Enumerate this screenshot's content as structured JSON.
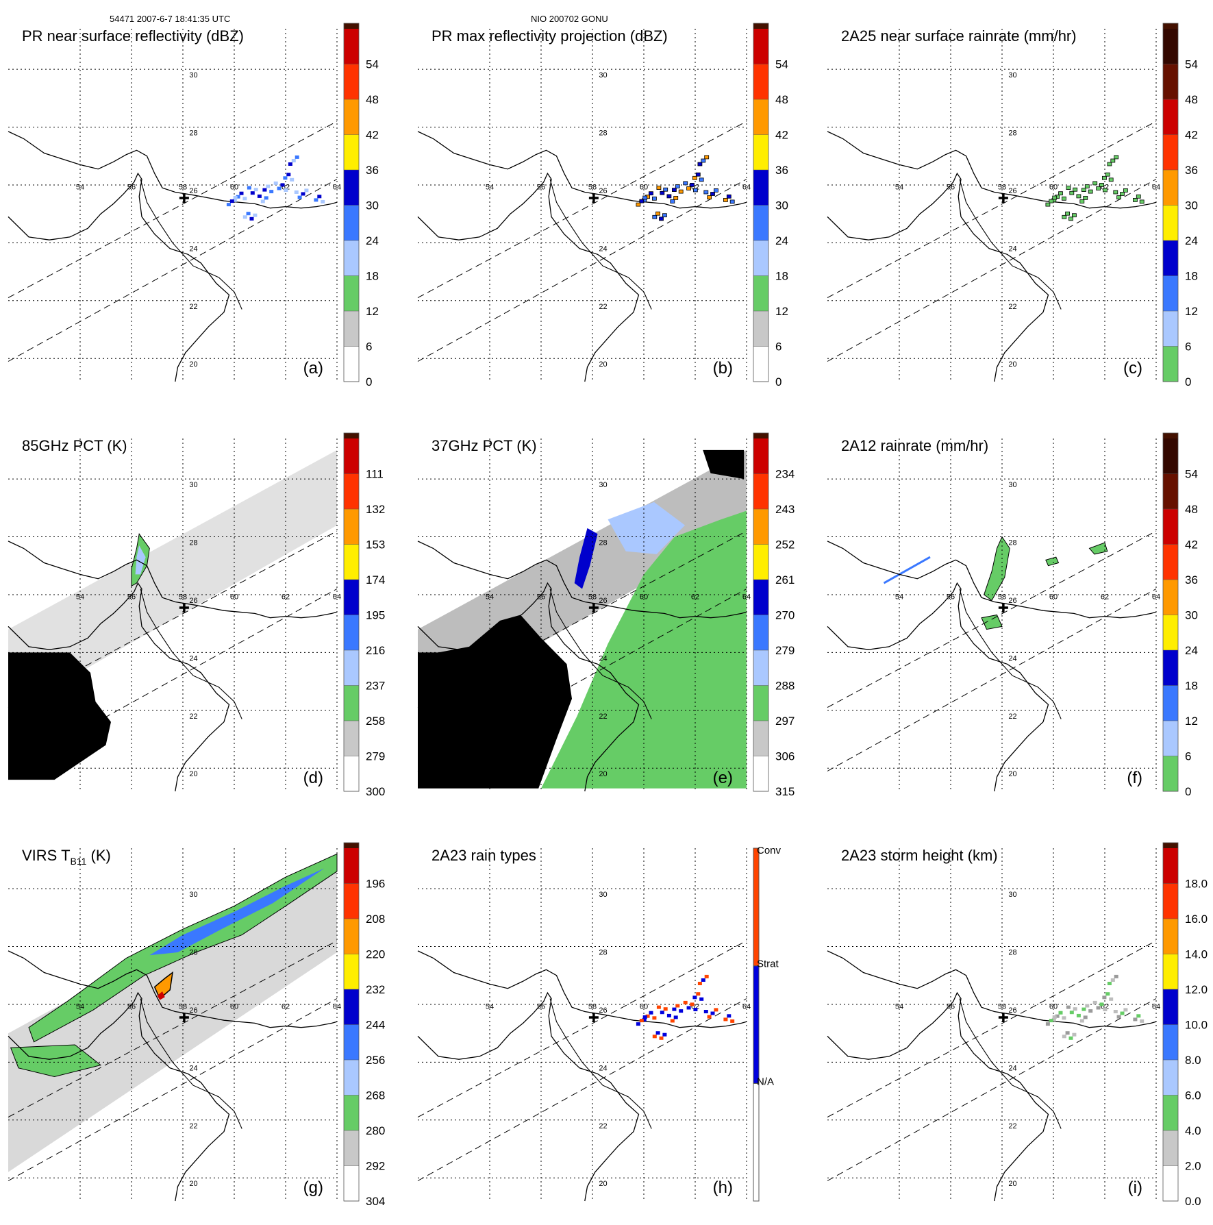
{
  "header": {
    "left": "54471 2007-6-7 18:41:35 UTC",
    "center": "NIO 200702 GONU"
  },
  "map": {
    "lon_labels": [
      "54",
      "56",
      "58",
      "60",
      "62",
      "64"
    ],
    "lat_labels": [
      "20",
      "22",
      "24",
      "26",
      "28",
      "30"
    ]
  },
  "colors": {
    "coast": "#000000",
    "grid": "#000000",
    "black_mask": "#000000",
    "scale10": [
      "#ffffff",
      "#c8c8c8",
      "#66cc66",
      "#aac8ff",
      "#3a78ff",
      "#0000cc",
      "#ffee00",
      "#ff9900",
      "#ff3300",
      "#cc0000",
      "#661100"
    ],
    "rain_types": [
      "#ffffff",
      "#0000dd",
      "#ff4400"
    ],
    "gray_light": "#d9d9d9",
    "gray_mid": "#bdbdbd",
    "gray_dark": "#9a9a9a",
    "green": "#66cc66",
    "blue_light": "#aac8ff",
    "blue": "#3a78ff",
    "blue_dark": "#0000cc",
    "orange": "#ff9900",
    "red": "#cc0000"
  },
  "chart_data": [
    {
      "id": "a",
      "type": "heatmap",
      "title": "PR near surface reflectivity (dBZ)",
      "letter": "(a)",
      "colorbar": {
        "kind": "standard",
        "ticks": [
          "0",
          "6",
          "12",
          "18",
          "24",
          "30",
          "36",
          "42",
          "48",
          "54"
        ]
      }
    },
    {
      "id": "b",
      "type": "heatmap",
      "title": "PR max reflectivity projection (dBZ)",
      "letter": "(b)",
      "colorbar": {
        "kind": "standard",
        "ticks": [
          "0",
          "6",
          "12",
          "18",
          "24",
          "30",
          "36",
          "42",
          "48",
          "54"
        ]
      }
    },
    {
      "id": "c",
      "type": "heatmap",
      "title": "2A25 near surface rainrate (mm/hr)",
      "letter": "(c)",
      "colorbar": {
        "kind": "rain",
        "ticks": [
          "0",
          "6",
          "12",
          "18",
          "24",
          "30",
          "36",
          "42",
          "48",
          "54"
        ]
      }
    },
    {
      "id": "d",
      "type": "heatmap",
      "title": "85GHz PCT (K)",
      "letter": "(d)",
      "colorbar": {
        "kind": "standard",
        "ticks": [
          "300",
          "279",
          "258",
          "237",
          "216",
          "195",
          "174",
          "153",
          "132",
          "111"
        ]
      }
    },
    {
      "id": "e",
      "type": "heatmap",
      "title": "37GHz PCT (K)",
      "letter": "(e)",
      "colorbar": {
        "kind": "standard",
        "ticks": [
          "315",
          "306",
          "297",
          "288",
          "279",
          "270",
          "261",
          "252",
          "243",
          "234"
        ]
      }
    },
    {
      "id": "f",
      "type": "heatmap",
      "title": "2A12 rainrate (mm/hr)",
      "letter": "(f)",
      "colorbar": {
        "kind": "rain",
        "ticks": [
          "0",
          "6",
          "12",
          "18",
          "24",
          "30",
          "36",
          "42",
          "48",
          "54"
        ]
      }
    },
    {
      "id": "g",
      "type": "heatmap",
      "title": "VIRS T",
      "title_sub": "B11",
      "title_suffix": " (K)",
      "letter": "(g)",
      "colorbar": {
        "kind": "standard",
        "ticks": [
          "304",
          "292",
          "280",
          "268",
          "256",
          "244",
          "232",
          "220",
          "208",
          "196"
        ]
      }
    },
    {
      "id": "h",
      "type": "heatmap",
      "title": "2A23 rain types",
      "letter": "(h)",
      "colorbar": {
        "kind": "types",
        "labels": [
          "N/A",
          "Strat",
          "Conv"
        ]
      }
    },
    {
      "id": "i",
      "type": "heatmap",
      "title": "2A23 storm height (km)",
      "letter": "(i)",
      "colorbar": {
        "kind": "standard",
        "ticks": [
          "0.0",
          "2.0",
          "4.0",
          "6.0",
          "8.0",
          "10.0",
          "12.0",
          "14.0",
          "16.0",
          "18.0"
        ]
      }
    }
  ]
}
